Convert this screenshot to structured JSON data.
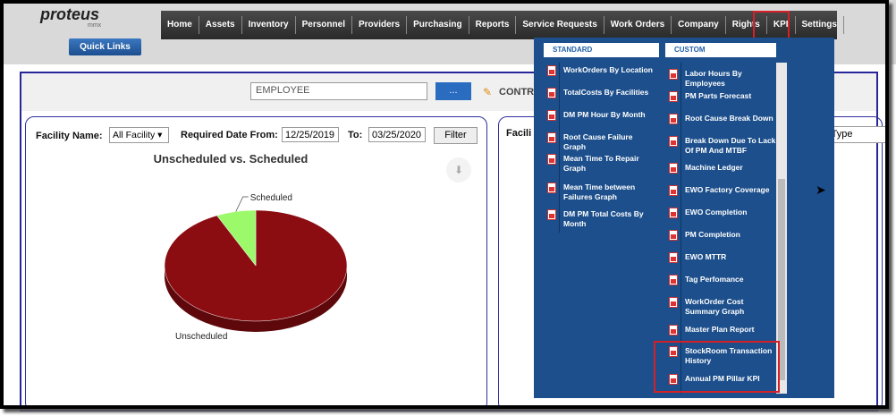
{
  "header": {
    "logo": "proteus",
    "logo_sub": "mmx",
    "quick_links": "Quick Links"
  },
  "nav": [
    "Home",
    "Assets",
    "Inventory",
    "Personnel",
    "Providers",
    "Purchasing",
    "Reports",
    "Service Requests",
    "Work Orders",
    "Company",
    "Rights",
    "KPI",
    "Settings"
  ],
  "search": {
    "employee": "EMPLOYEE",
    "button": "...",
    "contract": "CONTRA"
  },
  "filter": {
    "facility_label": "Facility Name:",
    "facility_value": "All Facility",
    "date_from_label": "Required Date From:",
    "date_from": "12/25/2019",
    "to_label": "To:",
    "date_to": "03/25/2020",
    "filter_button": "Filter"
  },
  "chart": {
    "type": "pie",
    "title": "Unscheduled vs. Scheduled",
    "categories": [
      "Unscheduled",
      "Scheduled"
    ],
    "values": [
      93,
      7
    ],
    "colors": [
      "#8b0d12",
      "#9cf96a"
    ]
  },
  "right_panel": {
    "facility_label": "Facili",
    "type_label": "rType"
  },
  "kpi_menu": {
    "standard_title": "STANDARD",
    "standard": [
      "WorkOrders By Location",
      "TotalCosts By Facilities",
      "DM PM Hour By Month",
      "Root Cause Failure Graph",
      "Mean Time To Repair Graph",
      "Mean Time between Failures Graph",
      "DM PM Total Costs By Month"
    ],
    "custom_title": "CUSTOM",
    "custom": [
      "Labor Hours By Employees",
      "PM Parts Forecast",
      "Root Cause Break Down",
      "Break Down Due To Lack Of PM And MTBF",
      "Machine Ledger",
      "EWO Factory Coverage",
      "EWO Completion",
      "PM Completion",
      "EWO MTTR",
      "Tag Perfomance",
      "WorkOrder Cost Summary Graph",
      "Master Plan Report",
      "StockRoom Transaction History",
      "Annual PM Pillar KPI"
    ]
  }
}
